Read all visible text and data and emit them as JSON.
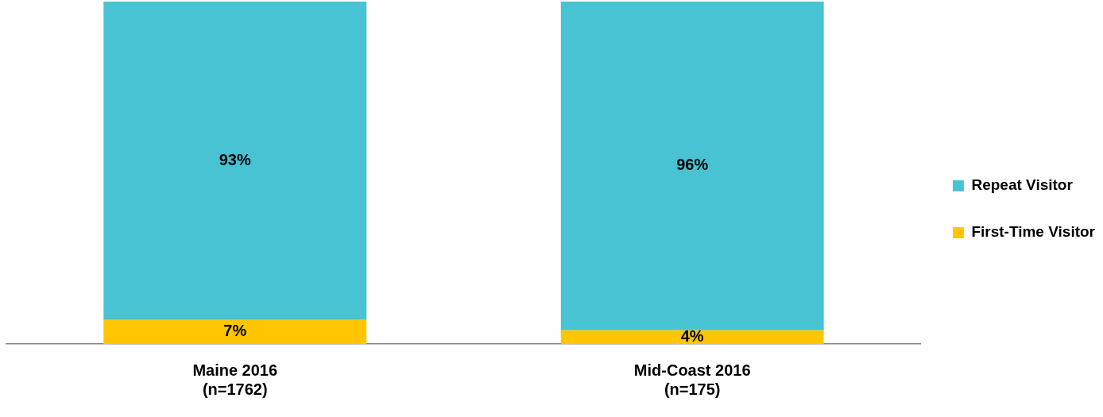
{
  "chart_data": {
    "type": "bar",
    "stacked": true,
    "categories": [
      "Maine 2016\n(n=1762)",
      "Mid-Coast 2016\n(n=175)"
    ],
    "series": [
      {
        "name": "First-Time Visitor",
        "color": "#ffc600",
        "values": [
          7,
          4
        ],
        "value_labels": [
          "7%",
          "4%"
        ]
      },
      {
        "name": "Repeat Visitor",
        "color": "#47c3d3",
        "values": [
          93,
          96
        ],
        "value_labels": [
          "93%",
          "96%"
        ]
      }
    ],
    "ylim": [
      0,
      100
    ],
    "tick_labels": "x",
    "legend": "right"
  }
}
